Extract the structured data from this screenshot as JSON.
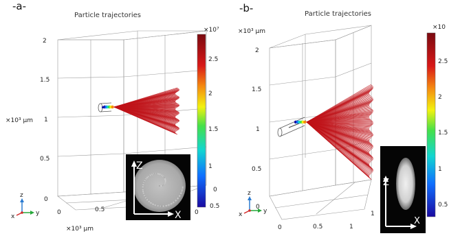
{
  "panel_a": {
    "label": "-a-",
    "title": "Particle trajectories",
    "z_ticks": [
      "2",
      "1.5",
      "1",
      "0.5",
      "0"
    ],
    "z_unit": "×10³ μm",
    "x_unit": "×10³ μm",
    "x_ticks": [
      "0",
      "0.5"
    ],
    "y_ticks": [
      "0",
      "0.5"
    ],
    "x_exp_tick": "0",
    "colorbar_exp": "×10⁷",
    "colorbar_ticks": [
      "2.5",
      "2",
      "1.5",
      "1"
    ],
    "inset_axis_z": "Z",
    "inset_axis_x": "X",
    "triad": {
      "z": "z",
      "y": "y",
      "x": "x"
    }
  },
  "panel_b": {
    "label": "-b-",
    "title": "Particle trajectories",
    "z_ticks": [
      "2",
      "1.5",
      "1",
      "0.5",
      "0"
    ],
    "z_unit": "×10³ μm",
    "x_ticks": [
      "0",
      "0.5",
      "1"
    ],
    "y_ticks": [
      "1"
    ],
    "colorbar_exp": "×10",
    "colorbar_ticks": [
      "2.5",
      "2",
      "1.5",
      "1",
      "0.5"
    ],
    "inset_axis_z": "Z",
    "inset_axis_x": "X",
    "triad": {
      "z": "z",
      "y": "y",
      "x": "x"
    }
  },
  "colors": {
    "trajectory": "#c0141a",
    "colorbar_stops": [
      "#1a0aa0",
      "#0f6fff",
      "#12d6d0",
      "#45e04a",
      "#f2f20f",
      "#f58a10",
      "#d81818",
      "#7a0a10"
    ]
  }
}
